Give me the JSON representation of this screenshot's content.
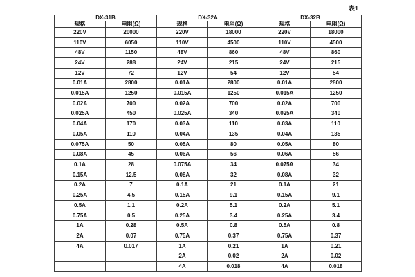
{
  "caption": "表1",
  "chart_data": {
    "type": "table",
    "title": "表1",
    "col_headers": [
      "规格",
      "电阻(Ω)"
    ],
    "groups": [
      {
        "name": "DX-31B",
        "rows": [
          [
            "220V",
            "20000"
          ],
          [
            "110V",
            "6050"
          ],
          [
            "48V",
            "1150"
          ],
          [
            "24V",
            "288"
          ],
          [
            "12V",
            "72"
          ],
          [
            "0.01A",
            "2800"
          ],
          [
            "0.015A",
            "1250"
          ],
          [
            "0.02A",
            "700"
          ],
          [
            "0.025A",
            "450"
          ],
          [
            "0.04A",
            "170"
          ],
          [
            "0.05A",
            "110"
          ],
          [
            "0.075A",
            "50"
          ],
          [
            "0.08A",
            "45"
          ],
          [
            "0.1A",
            "28"
          ],
          [
            "0.15A",
            "12.5"
          ],
          [
            "0.2A",
            "7"
          ],
          [
            "0.25A",
            "4.5"
          ],
          [
            "0.5A",
            "1.1"
          ],
          [
            "0.75A",
            "0.5"
          ],
          [
            "1A",
            "0.28"
          ],
          [
            "2A",
            "0.07"
          ],
          [
            "4A",
            "0.017"
          ],
          [
            "",
            ""
          ],
          [
            "",
            ""
          ]
        ]
      },
      {
        "name": "DX-32A",
        "rows": [
          [
            "220V",
            "18000"
          ],
          [
            "110V",
            "4500"
          ],
          [
            "48V",
            "860"
          ],
          [
            "24V",
            "215"
          ],
          [
            "12V",
            "54"
          ],
          [
            "0.01A",
            "2800"
          ],
          [
            "0.015A",
            "1250"
          ],
          [
            "0.02A",
            "700"
          ],
          [
            "0.025A",
            "340"
          ],
          [
            "0.03A",
            "110"
          ],
          [
            "0.04A",
            "135"
          ],
          [
            "0.05A",
            "80"
          ],
          [
            "0.06A",
            "56"
          ],
          [
            "0.075A",
            "34"
          ],
          [
            "0.08A",
            "32"
          ],
          [
            "0.1A",
            "21"
          ],
          [
            "0.15A",
            "9.1"
          ],
          [
            "0.2A",
            "5.1"
          ],
          [
            "0.25A",
            "3.4"
          ],
          [
            "0.5A",
            "0.8"
          ],
          [
            "0.75A",
            "0.37"
          ],
          [
            "1A",
            "0.21"
          ],
          [
            "2A",
            "0.02"
          ],
          [
            "4A",
            "0.018"
          ]
        ]
      },
      {
        "name": "DX-32B",
        "rows": [
          [
            "220V",
            "18000"
          ],
          [
            "110V",
            "4500"
          ],
          [
            "48V",
            "860"
          ],
          [
            "24V",
            "215"
          ],
          [
            "12V",
            "54"
          ],
          [
            "0.01A",
            "2800"
          ],
          [
            "0.015A",
            "1250"
          ],
          [
            "0.02A",
            "700"
          ],
          [
            "0.025A",
            "340"
          ],
          [
            "0.03A",
            "110"
          ],
          [
            "0.04A",
            "135"
          ],
          [
            "0.05A",
            "80"
          ],
          [
            "0.06A",
            "56"
          ],
          [
            "0.075A",
            "34"
          ],
          [
            "0.08A",
            "32"
          ],
          [
            "0.1A",
            "21"
          ],
          [
            "0.15A",
            "9.1"
          ],
          [
            "0.2A",
            "5.1"
          ],
          [
            "0.25A",
            "3.4"
          ],
          [
            "0.5A",
            "0.8"
          ],
          [
            "0.75A",
            "0.37"
          ],
          [
            "1A",
            "0.21"
          ],
          [
            "2A",
            "0.02"
          ],
          [
            "4A",
            "0.018"
          ]
        ]
      }
    ],
    "layout": {
      "border_color": "#3d3d3d",
      "background": "#ffffff",
      "caption_position": "top-right"
    }
  }
}
